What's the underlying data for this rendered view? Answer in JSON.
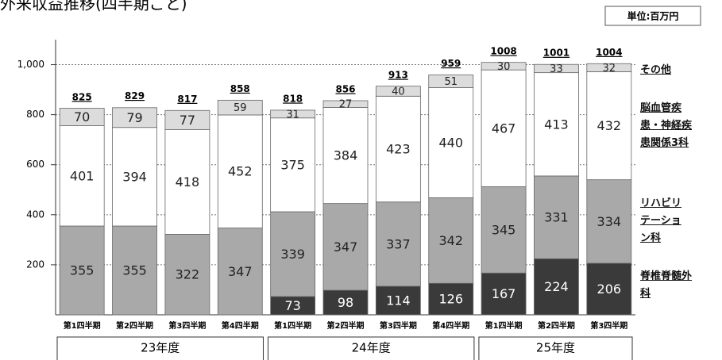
{
  "chart_data": {
    "type": "stacked_bar",
    "title": "外来収益推移(四半期ごと)",
    "unit_label": "単位:百万円",
    "categories": [
      "第1四半期",
      "第2四半期",
      "第3四半期",
      "第4四半期",
      "第1四半期",
      "第2四半期",
      "第3四半期",
      "第4四半期",
      "第1四半期",
      "第2四半期",
      "第3四半期"
    ],
    "groups": [
      {
        "label": "23年度",
        "count": 4
      },
      {
        "label": "24年度",
        "count": 4
      },
      {
        "label": "25年度",
        "count": 3
      }
    ],
    "series": [
      {
        "name": "脊椎脊髄外科",
        "color": "#3a3a3a",
        "values": [
          null,
          null,
          null,
          null,
          73,
          98,
          114,
          126,
          167,
          224,
          206
        ]
      },
      {
        "name": "リハビリテーション科",
        "color": "#a9a9a9",
        "values": [
          355,
          355,
          322,
          347,
          339,
          347,
          337,
          342,
          345,
          331,
          334
        ]
      },
      {
        "name": "脳血管疾患・神経疾患関係3科",
        "color": "#ffffff",
        "values": [
          401,
          394,
          418,
          452,
          375,
          384,
          423,
          440,
          467,
          413,
          432
        ]
      },
      {
        "name": "その他",
        "color": "#dcdcdc",
        "values": [
          70,
          79,
          77,
          59,
          31,
          27,
          40,
          51,
          30,
          33,
          32
        ]
      }
    ],
    "totals": [
      825,
      829,
      817,
      858,
      818,
      856,
      913,
      959,
      1008,
      1001,
      1004
    ],
    "ylim": [
      0,
      1100
    ],
    "yticks": [
      200,
      400,
      600,
      800,
      {
        "value": 1000,
        "label": "1,000"
      }
    ],
    "grid": true
  }
}
